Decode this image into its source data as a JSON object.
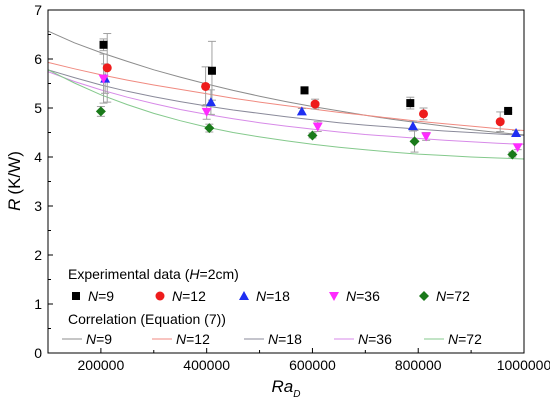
{
  "chart_data": {
    "type": "scatter",
    "xlabel": "Ra",
    "xlabel_sub": "D",
    "ylabel": "R",
    "ylabel_unit": "(K/W)",
    "xlim": [
      100000,
      1000000
    ],
    "ylim": [
      0,
      7
    ],
    "x_ticks": [
      200000,
      400000,
      600000,
      800000,
      1000000
    ],
    "y_ticks": [
      0,
      1,
      2,
      3,
      4,
      5,
      6,
      7
    ],
    "x_tick_labels": [
      "200000",
      "400000",
      "600000",
      "800000",
      "1000000"
    ],
    "y_tick_labels": [
      "0",
      "1",
      "2",
      "3",
      "4",
      "5",
      "6",
      "7"
    ],
    "grid": false,
    "legend_placement": "bottom-left",
    "legend_group_experimental": {
      "text": "Experimental data (",
      "italic": "H",
      "rest": "=2cm)"
    },
    "legend_group_correlation": {
      "text": "Correlation (Equation (7))"
    },
    "series": [
      {
        "key": "N9",
        "label_italic": "N",
        "label_rest": "=9",
        "marker": "square",
        "color": "#000000",
        "line_color": "#8c8c8c",
        "points": [
          [
            205000,
            6.29
          ],
          [
            410000,
            5.76
          ],
          [
            585000,
            5.36
          ],
          [
            785000,
            5.1
          ],
          [
            970000,
            4.94
          ]
        ],
        "errors": [
          0.12,
          0.6,
          0.07,
          0.12,
          0.03
        ],
        "fit": [
          6.57,
          6.33,
          6.13,
          5.95,
          5.78,
          5.63,
          5.49,
          5.36,
          5.24,
          5.13,
          5.03,
          4.94,
          4.85,
          4.77,
          4.7,
          4.63,
          4.56,
          4.5,
          4.45
        ]
      },
      {
        "key": "N12",
        "label_italic": "N",
        "label_rest": "=12",
        "marker": "circle",
        "color": "#ee1c1c",
        "line_color": "#f08a80",
        "points": [
          [
            212000,
            5.82
          ],
          [
            398000,
            5.44
          ],
          [
            605000,
            5.08
          ],
          [
            810000,
            4.88
          ],
          [
            955000,
            4.72
          ]
        ],
        "errors": [
          0.7,
          0.4,
          0.1,
          0.12,
          0.2
        ],
        "fit": [
          5.93,
          5.8,
          5.68,
          5.57,
          5.47,
          5.38,
          5.29,
          5.2,
          5.12,
          5.05,
          4.98,
          4.91,
          4.85,
          4.79,
          4.73,
          4.68,
          4.63,
          4.58,
          4.54
        ]
      },
      {
        "key": "N18",
        "label_italic": "N",
        "label_rest": "=18",
        "marker": "triangle-up",
        "color": "#1e2ef2",
        "line_color": "#8a8a9a",
        "points": [
          [
            208000,
            5.6
          ],
          [
            408000,
            5.12
          ],
          [
            580000,
            4.93
          ],
          [
            790000,
            4.63
          ],
          [
            985000,
            4.49
          ]
        ],
        "errors": [
          0.3,
          0.25,
          0.06,
          0.1,
          0.05
        ],
        "fit": [
          5.78,
          5.62,
          5.47,
          5.34,
          5.23,
          5.13,
          5.04,
          4.96,
          4.89,
          4.82,
          4.76,
          4.7,
          4.65,
          4.61,
          4.57,
          4.53,
          4.5,
          4.47,
          4.44
        ]
      },
      {
        "key": "N36",
        "label_italic": "N",
        "label_rest": "=36",
        "marker": "triangle-down",
        "color": "#ff2bff",
        "line_color": "#d78ae8",
        "points": [
          [
            205000,
            5.6
          ],
          [
            400000,
            4.92
          ],
          [
            610000,
            4.62
          ],
          [
            815000,
            4.42
          ],
          [
            988000,
            4.2
          ]
        ],
        "errors": [
          0.5,
          0.15,
          0.1,
          0.08,
          0.05
        ],
        "fit": [
          5.74,
          5.54,
          5.37,
          5.22,
          5.09,
          4.97,
          4.87,
          4.78,
          4.7,
          4.63,
          4.57,
          4.51,
          4.46,
          4.42,
          4.38,
          4.34,
          4.31,
          4.28,
          4.26
        ]
      },
      {
        "key": "N72",
        "label_italic": "N",
        "label_rest": "=72",
        "marker": "diamond",
        "color": "#1a7a1a",
        "line_color": "#84c98c",
        "points": [
          [
            200000,
            4.93
          ],
          [
            405000,
            4.59
          ],
          [
            600000,
            4.44
          ],
          [
            793000,
            4.32
          ],
          [
            978000,
            4.05
          ]
        ],
        "errors": [
          0.1,
          0.08,
          0.05,
          0.22,
          0.05
        ],
        "fit": [
          5.78,
          5.51,
          5.27,
          5.07,
          4.89,
          4.74,
          4.61,
          4.5,
          4.41,
          4.33,
          4.26,
          4.2,
          4.15,
          4.1,
          4.06,
          4.03,
          4.0,
          3.98,
          3.96
        ]
      }
    ],
    "fit_x": [
      100000,
      150000,
      200000,
      250000,
      300000,
      350000,
      400000,
      450000,
      500000,
      550000,
      600000,
      650000,
      700000,
      750000,
      800000,
      850000,
      900000,
      950000,
      1000000
    ]
  }
}
